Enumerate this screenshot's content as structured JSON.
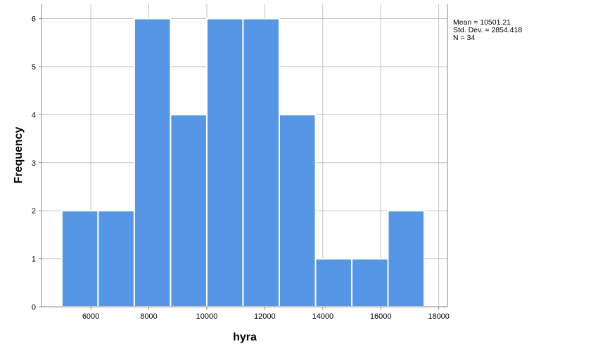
{
  "chart_data": {
    "type": "bar",
    "subtype": "histogram",
    "xlabel": "hyra",
    "ylabel": "Frequency",
    "xlim": [
      4300,
      18300
    ],
    "ylim": [
      0,
      6.3
    ],
    "x_ticks": [
      6000,
      8000,
      10000,
      12000,
      14000,
      16000,
      18000
    ],
    "y_ticks": [
      0,
      1,
      2,
      3,
      4,
      5,
      6
    ],
    "grid": true,
    "bar_color": "#5596e6",
    "bins": [
      {
        "from": 5000,
        "to": 6250,
        "count": 2
      },
      {
        "from": 6250,
        "to": 7500,
        "count": 2
      },
      {
        "from": 7500,
        "to": 8750,
        "count": 6
      },
      {
        "from": 8750,
        "to": 10000,
        "count": 4
      },
      {
        "from": 10000,
        "to": 11250,
        "count": 6
      },
      {
        "from": 11250,
        "to": 12500,
        "count": 6
      },
      {
        "from": 12500,
        "to": 13750,
        "count": 4
      },
      {
        "from": 13750,
        "to": 15000,
        "count": 1
      },
      {
        "from": 15000,
        "to": 16250,
        "count": 1
      },
      {
        "from": 16250,
        "to": 17500,
        "count": 2
      }
    ],
    "stats": {
      "mean": "Mean = 10501.21",
      "std": "Std. Dev. = 2854.418",
      "n": "N = 34"
    }
  }
}
